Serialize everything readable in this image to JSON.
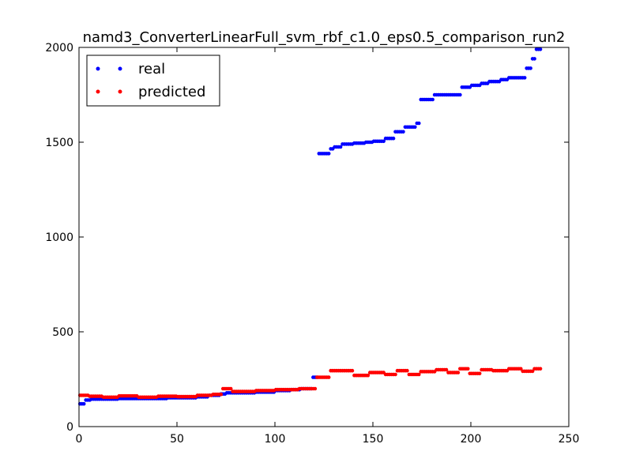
{
  "chart_data": {
    "type": "scatter",
    "title": "namd3_ConverterLinearFull_svm_rbf_c1.0_eps0.5_comparison_run2",
    "xlabel": "",
    "ylabel": "",
    "xlim": [
      0,
      250
    ],
    "ylim": [
      0,
      2000
    ],
    "x_ticks": [
      "0",
      "50",
      "100",
      "150",
      "200",
      "250"
    ],
    "y_ticks": [
      "0",
      "500",
      "1000",
      "1500",
      "2000"
    ],
    "legend_position": "top-left",
    "grid": false,
    "series": [
      {
        "name": "real",
        "color": "#0000ff",
        "segments": [
          {
            "x_start": 0,
            "x_end": 3,
            "y": 120
          },
          {
            "x_start": 3,
            "x_end": 6,
            "y": 140
          },
          {
            "x_start": 6,
            "x_end": 20,
            "y": 145
          },
          {
            "x_start": 20,
            "x_end": 45,
            "y": 148
          },
          {
            "x_start": 45,
            "x_end": 60,
            "y": 152
          },
          {
            "x_start": 60,
            "x_end": 66,
            "y": 157
          },
          {
            "x_start": 66,
            "x_end": 72,
            "y": 165
          },
          {
            "x_start": 72,
            "x_end": 75,
            "y": 172
          },
          {
            "x_start": 75,
            "x_end": 90,
            "y": 178
          },
          {
            "x_start": 90,
            "x_end": 100,
            "y": 182
          },
          {
            "x_start": 100,
            "x_end": 108,
            "y": 190
          },
          {
            "x_start": 108,
            "x_end": 113,
            "y": 195
          },
          {
            "x_start": 113,
            "x_end": 119,
            "y": 200
          },
          {
            "x_start": 119,
            "x_end": 122,
            "y": 260
          },
          {
            "x_start": 122,
            "x_end": 128,
            "y": 1440
          },
          {
            "x_start": 128,
            "x_end": 130,
            "y": 1465
          },
          {
            "x_start": 130,
            "x_end": 134,
            "y": 1475
          },
          {
            "x_start": 134,
            "x_end": 140,
            "y": 1490
          },
          {
            "x_start": 140,
            "x_end": 146,
            "y": 1495
          },
          {
            "x_start": 146,
            "x_end": 150,
            "y": 1500
          },
          {
            "x_start": 150,
            "x_end": 156,
            "y": 1505
          },
          {
            "x_start": 156,
            "x_end": 161,
            "y": 1520
          },
          {
            "x_start": 161,
            "x_end": 166,
            "y": 1555
          },
          {
            "x_start": 166,
            "x_end": 172,
            "y": 1580
          },
          {
            "x_start": 172,
            "x_end": 174,
            "y": 1600
          },
          {
            "x_start": 174,
            "x_end": 181,
            "y": 1725
          },
          {
            "x_start": 181,
            "x_end": 195,
            "y": 1750
          },
          {
            "x_start": 195,
            "x_end": 200,
            "y": 1790
          },
          {
            "x_start": 200,
            "x_end": 205,
            "y": 1800
          },
          {
            "x_start": 205,
            "x_end": 209,
            "y": 1810
          },
          {
            "x_start": 209,
            "x_end": 215,
            "y": 1820
          },
          {
            "x_start": 215,
            "x_end": 219,
            "y": 1830
          },
          {
            "x_start": 219,
            "x_end": 228,
            "y": 1840
          },
          {
            "x_start": 228,
            "x_end": 231,
            "y": 1890
          },
          {
            "x_start": 231,
            "x_end": 233,
            "y": 1940
          },
          {
            "x_start": 233,
            "x_end": 236,
            "y": 1990
          }
        ]
      },
      {
        "name": "predicted",
        "color": "#ff0000",
        "segments": [
          {
            "x_start": 0,
            "x_end": 5,
            "y": 165
          },
          {
            "x_start": 5,
            "x_end": 12,
            "y": 160
          },
          {
            "x_start": 12,
            "x_end": 20,
            "y": 155
          },
          {
            "x_start": 20,
            "x_end": 30,
            "y": 162
          },
          {
            "x_start": 30,
            "x_end": 40,
            "y": 155
          },
          {
            "x_start": 40,
            "x_end": 50,
            "y": 160
          },
          {
            "x_start": 50,
            "x_end": 60,
            "y": 158
          },
          {
            "x_start": 60,
            "x_end": 68,
            "y": 165
          },
          {
            "x_start": 68,
            "x_end": 73,
            "y": 170
          },
          {
            "x_start": 73,
            "x_end": 78,
            "y": 200
          },
          {
            "x_start": 78,
            "x_end": 90,
            "y": 185
          },
          {
            "x_start": 90,
            "x_end": 100,
            "y": 190
          },
          {
            "x_start": 100,
            "x_end": 112,
            "y": 195
          },
          {
            "x_start": 112,
            "x_end": 121,
            "y": 200
          },
          {
            "x_start": 121,
            "x_end": 128,
            "y": 260
          },
          {
            "x_start": 128,
            "x_end": 140,
            "y": 295
          },
          {
            "x_start": 140,
            "x_end": 148,
            "y": 270
          },
          {
            "x_start": 148,
            "x_end": 156,
            "y": 285
          },
          {
            "x_start": 156,
            "x_end": 162,
            "y": 275
          },
          {
            "x_start": 162,
            "x_end": 168,
            "y": 295
          },
          {
            "x_start": 168,
            "x_end": 174,
            "y": 275
          },
          {
            "x_start": 174,
            "x_end": 182,
            "y": 290
          },
          {
            "x_start": 182,
            "x_end": 188,
            "y": 300
          },
          {
            "x_start": 188,
            "x_end": 194,
            "y": 285
          },
          {
            "x_start": 194,
            "x_end": 199,
            "y": 305
          },
          {
            "x_start": 199,
            "x_end": 205,
            "y": 280
          },
          {
            "x_start": 205,
            "x_end": 211,
            "y": 300
          },
          {
            "x_start": 211,
            "x_end": 219,
            "y": 295
          },
          {
            "x_start": 219,
            "x_end": 226,
            "y": 305
          },
          {
            "x_start": 226,
            "x_end": 232,
            "y": 292
          },
          {
            "x_start": 232,
            "x_end": 236,
            "y": 305
          }
        ]
      }
    ]
  }
}
